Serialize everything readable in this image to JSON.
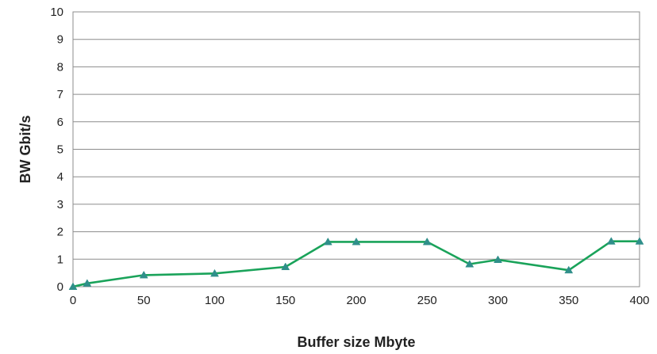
{
  "chart_data": {
    "type": "line",
    "title": "",
    "xlabel": "Buffer size Mbyte",
    "ylabel": "BW Gbit/s",
    "xlim": [
      0,
      400
    ],
    "ylim": [
      0,
      10
    ],
    "x_ticks": [
      "0",
      "50",
      "100",
      "150",
      "200",
      "250",
      "300",
      "350",
      "400"
    ],
    "y_ticks": [
      "0",
      "1",
      "2",
      "3",
      "4",
      "5",
      "6",
      "7",
      "8",
      "9",
      "10"
    ],
    "grid": true,
    "legend": "none",
    "series": [
      {
        "color": "#1aa35a",
        "marker_color": "#2f8f8a",
        "marker": "triangle",
        "x": [
          0,
          10,
          50,
          100,
          150,
          180,
          200,
          250,
          280,
          300,
          350,
          380,
          400
        ],
        "y": [
          0.0,
          0.12,
          0.42,
          0.48,
          0.72,
          1.63,
          1.63,
          1.63,
          0.82,
          0.98,
          0.6,
          1.65,
          1.65
        ]
      }
    ]
  }
}
